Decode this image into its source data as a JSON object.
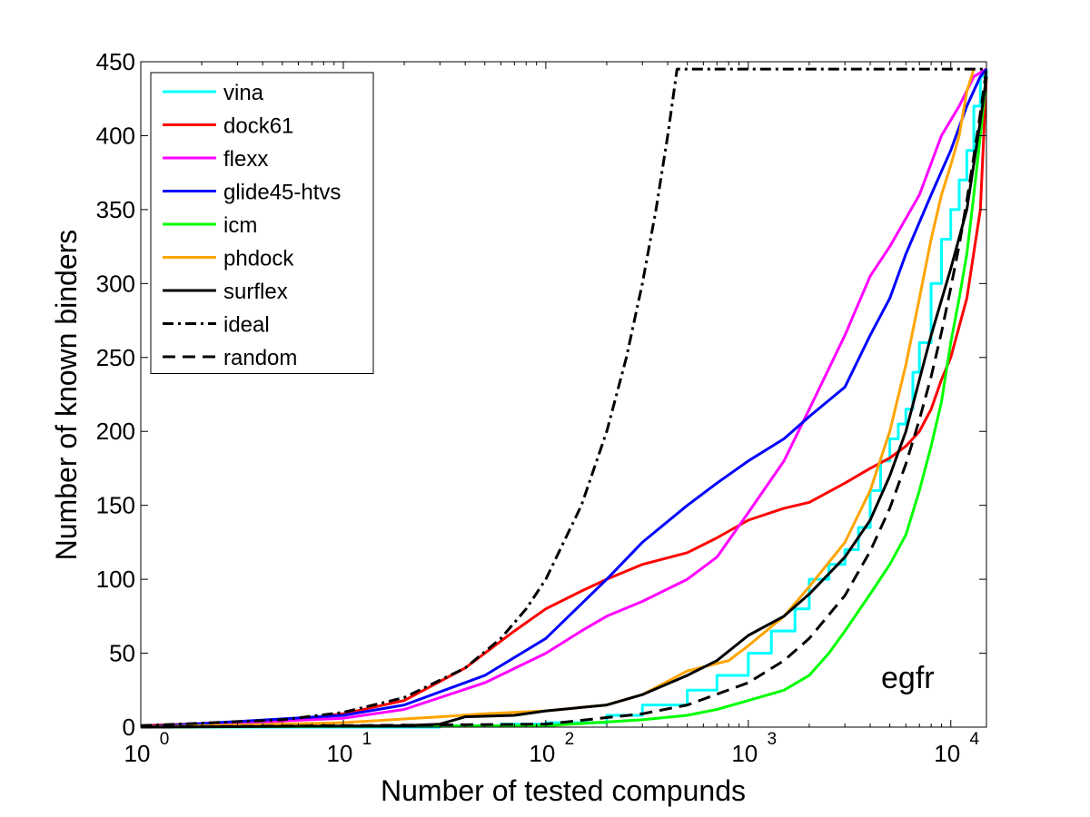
{
  "chart_data": {
    "type": "line",
    "title": "",
    "xlabel": "Number of tested compunds",
    "ylabel": "Number of known binders",
    "xscale": "log",
    "xlim": [
      1,
      15000
    ],
    "ylim": [
      0,
      450
    ],
    "grid": false,
    "legend_position": "top-left",
    "x_ticks": [
      {
        "value": 1,
        "base": "10",
        "exp": "0"
      },
      {
        "value": 10,
        "base": "10",
        "exp": "1"
      },
      {
        "value": 100,
        "base": "10",
        "exp": "2"
      },
      {
        "value": 1000,
        "base": "10",
        "exp": "3"
      },
      {
        "value": 10000,
        "base": "10",
        "exp": "4"
      }
    ],
    "y_ticks": [
      {
        "value": 0,
        "label": "0"
      },
      {
        "value": 50,
        "label": "50"
      },
      {
        "value": 100,
        "label": "100"
      },
      {
        "value": 150,
        "label": "150"
      },
      {
        "value": 200,
        "label": "200"
      },
      {
        "value": 250,
        "label": "250"
      },
      {
        "value": 300,
        "label": "300"
      },
      {
        "value": 350,
        "label": "350"
      },
      {
        "value": 400,
        "label": "400"
      },
      {
        "value": 450,
        "label": "450"
      }
    ],
    "annotation": "egfr",
    "series": [
      {
        "name": "vina",
        "color": "#00ffff",
        "dash": "solid",
        "step": true,
        "points": [
          [
            1,
            0
          ],
          [
            30,
            1
          ],
          [
            60,
            2
          ],
          [
            100,
            3
          ],
          [
            200,
            8
          ],
          [
            300,
            15
          ],
          [
            500,
            25
          ],
          [
            700,
            35
          ],
          [
            1000,
            50
          ],
          [
            1300,
            65
          ],
          [
            1700,
            80
          ],
          [
            2000,
            100
          ],
          [
            2500,
            110
          ],
          [
            3000,
            120
          ],
          [
            3500,
            135
          ],
          [
            4000,
            160
          ],
          [
            4500,
            180
          ],
          [
            5000,
            195
          ],
          [
            5500,
            205
          ],
          [
            6000,
            215
          ],
          [
            6500,
            240
          ],
          [
            7000,
            260
          ],
          [
            8000,
            300
          ],
          [
            9000,
            330
          ],
          [
            10000,
            350
          ],
          [
            11000,
            370
          ],
          [
            12000,
            390
          ],
          [
            13000,
            420
          ],
          [
            14000,
            440
          ],
          [
            15000,
            445
          ]
        ]
      },
      {
        "name": "dock61",
        "color": "#ff0000",
        "dash": "solid",
        "step": false,
        "points": [
          [
            1,
            1
          ],
          [
            5,
            4
          ],
          [
            10,
            9
          ],
          [
            20,
            18
          ],
          [
            40,
            40
          ],
          [
            70,
            65
          ],
          [
            100,
            80
          ],
          [
            150,
            92
          ],
          [
            200,
            100
          ],
          [
            300,
            110
          ],
          [
            500,
            118
          ],
          [
            700,
            128
          ],
          [
            1000,
            140
          ],
          [
            1500,
            148
          ],
          [
            2000,
            152
          ],
          [
            3000,
            165
          ],
          [
            4000,
            175
          ],
          [
            5000,
            182
          ],
          [
            6000,
            190
          ],
          [
            7000,
            200
          ],
          [
            8000,
            215
          ],
          [
            9000,
            235
          ],
          [
            10000,
            250
          ],
          [
            12000,
            290
          ],
          [
            14000,
            350
          ],
          [
            15000,
            440
          ]
        ]
      },
      {
        "name": "flexx",
        "color": "#ff00ff",
        "dash": "solid",
        "step": false,
        "points": [
          [
            1,
            0
          ],
          [
            10,
            6
          ],
          [
            20,
            12
          ],
          [
            50,
            30
          ],
          [
            100,
            50
          ],
          [
            150,
            65
          ],
          [
            200,
            75
          ],
          [
            300,
            85
          ],
          [
            500,
            100
          ],
          [
            700,
            115
          ],
          [
            1000,
            145
          ],
          [
            1500,
            180
          ],
          [
            2000,
            215
          ],
          [
            3000,
            265
          ],
          [
            4000,
            305
          ],
          [
            5000,
            325
          ],
          [
            7000,
            360
          ],
          [
            9000,
            400
          ],
          [
            11000,
            420
          ],
          [
            13000,
            440
          ],
          [
            15000,
            445
          ]
        ]
      },
      {
        "name": "glide45-htvs",
        "color": "#0000ff",
        "dash": "solid",
        "step": false,
        "points": [
          [
            1,
            0
          ],
          [
            10,
            8
          ],
          [
            20,
            15
          ],
          [
            50,
            35
          ],
          [
            100,
            60
          ],
          [
            200,
            100
          ],
          [
            300,
            125
          ],
          [
            500,
            150
          ],
          [
            700,
            165
          ],
          [
            1000,
            180
          ],
          [
            1500,
            195
          ],
          [
            2000,
            210
          ],
          [
            3000,
            230
          ],
          [
            4000,
            265
          ],
          [
            5000,
            290
          ],
          [
            6000,
            320
          ],
          [
            8000,
            360
          ],
          [
            10000,
            390
          ],
          [
            12000,
            420
          ],
          [
            14000,
            440
          ],
          [
            15000,
            445
          ]
        ]
      },
      {
        "name": "icm",
        "color": "#00ff00",
        "dash": "solid",
        "step": false,
        "points": [
          [
            1,
            0
          ],
          [
            100,
            1
          ],
          [
            300,
            5
          ],
          [
            500,
            8
          ],
          [
            700,
            12
          ],
          [
            1000,
            18
          ],
          [
            1500,
            25
          ],
          [
            2000,
            35
          ],
          [
            2500,
            50
          ],
          [
            3000,
            65
          ],
          [
            4000,
            90
          ],
          [
            5000,
            110
          ],
          [
            6000,
            130
          ],
          [
            7000,
            160
          ],
          [
            8000,
            190
          ],
          [
            9000,
            220
          ],
          [
            10000,
            260
          ],
          [
            11000,
            290
          ],
          [
            12000,
            320
          ],
          [
            13000,
            360
          ],
          [
            14000,
            400
          ],
          [
            15000,
            440
          ]
        ]
      },
      {
        "name": "phdock",
        "color": "#ffa500",
        "dash": "solid",
        "step": false,
        "points": [
          [
            1,
            0
          ],
          [
            10,
            3
          ],
          [
            30,
            7
          ],
          [
            50,
            9
          ],
          [
            100,
            11
          ],
          [
            200,
            15
          ],
          [
            300,
            22
          ],
          [
            500,
            38
          ],
          [
            800,
            45
          ],
          [
            1000,
            55
          ],
          [
            1500,
            75
          ],
          [
            2000,
            95
          ],
          [
            3000,
            125
          ],
          [
            4000,
            160
          ],
          [
            5000,
            200
          ],
          [
            6000,
            245
          ],
          [
            7000,
            290
          ],
          [
            8000,
            330
          ],
          [
            9000,
            360
          ],
          [
            10000,
            380
          ],
          [
            11000,
            400
          ],
          [
            12000,
            430
          ],
          [
            13000,
            445
          ]
        ]
      },
      {
        "name": "surflex",
        "color": "#000000",
        "dash": "solid",
        "step": false,
        "points": [
          [
            1,
            0
          ],
          [
            20,
            1
          ],
          [
            30,
            2
          ],
          [
            40,
            7
          ],
          [
            70,
            8
          ],
          [
            100,
            11
          ],
          [
            200,
            15
          ],
          [
            300,
            22
          ],
          [
            500,
            35
          ],
          [
            700,
            45
          ],
          [
            1000,
            62
          ],
          [
            1500,
            75
          ],
          [
            2000,
            90
          ],
          [
            3000,
            115
          ],
          [
            4000,
            140
          ],
          [
            5000,
            170
          ],
          [
            6000,
            200
          ],
          [
            7000,
            235
          ],
          [
            8000,
            265
          ],
          [
            10000,
            310
          ],
          [
            12000,
            350
          ],
          [
            14000,
            410
          ],
          [
            15000,
            440
          ]
        ]
      },
      {
        "name": "ideal",
        "color": "#000000",
        "dash": "12,5,3,5",
        "step": false,
        "points": [
          [
            1,
            1
          ],
          [
            5,
            5
          ],
          [
            10,
            10
          ],
          [
            20,
            20
          ],
          [
            40,
            40
          ],
          [
            60,
            60
          ],
          [
            80,
            80
          ],
          [
            100,
            100
          ],
          [
            150,
            150
          ],
          [
            200,
            200
          ],
          [
            250,
            250
          ],
          [
            300,
            300
          ],
          [
            350,
            350
          ],
          [
            400,
            400
          ],
          [
            445,
            445
          ],
          [
            15000,
            445
          ]
        ]
      },
      {
        "name": "random",
        "color": "#000000",
        "dash": "14,8",
        "step": false,
        "points": [
          [
            1,
            0
          ],
          [
            100,
            2
          ],
          [
            300,
            9
          ],
          [
            500,
            15
          ],
          [
            1000,
            30
          ],
          [
            1500,
            45
          ],
          [
            2000,
            60
          ],
          [
            3000,
            89
          ],
          [
            4000,
            119
          ],
          [
            5000,
            148
          ],
          [
            6000,
            178
          ],
          [
            7000,
            208
          ],
          [
            8000,
            237
          ],
          [
            9000,
            267
          ],
          [
            10000,
            297
          ],
          [
            11000,
            326
          ],
          [
            12000,
            356
          ],
          [
            13000,
            386
          ],
          [
            14000,
            415
          ],
          [
            15000,
            445
          ]
        ]
      }
    ]
  }
}
